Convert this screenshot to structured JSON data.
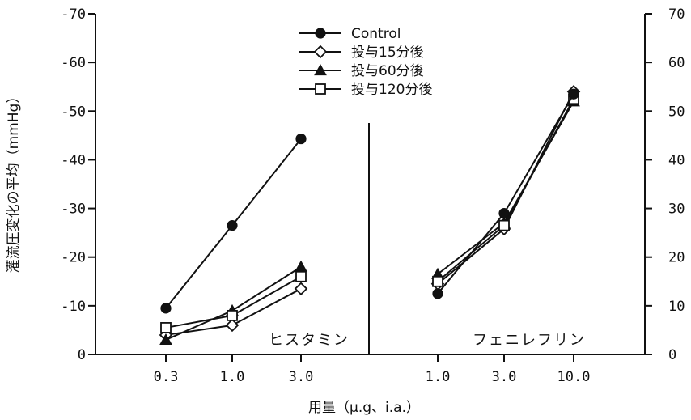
{
  "chart_data": {
    "type": "line",
    "xlabel": "用量（μ.g、i.a.）",
    "ylabel": "灌流圧変化の平均（mmHg）",
    "left_axis": {
      "ylim": [
        0,
        -70
      ],
      "ticks": [
        0,
        -10,
        -20,
        -30,
        -40,
        -50,
        -60,
        -70
      ],
      "tick_labels": [
        "0",
        "-10",
        "-20",
        "-30",
        "-40",
        "-50",
        "-60",
        "-70"
      ]
    },
    "right_axis": {
      "ylim": [
        0,
        70
      ],
      "ticks": [
        0,
        10,
        20,
        30,
        40,
        50,
        60,
        70
      ],
      "tick_labels": [
        "0",
        "10",
        "20",
        "30",
        "40",
        "50",
        "60",
        "70"
      ]
    },
    "legend": [
      {
        "name": "Control",
        "marker": "filled-circle"
      },
      {
        "name": "投与15分後",
        "marker": "open-diamond"
      },
      {
        "name": "投与60分後",
        "marker": "filled-triangle"
      },
      {
        "name": "投与120分後",
        "marker": "open-square"
      }
    ],
    "panels": [
      {
        "label": "ヒスタミン",
        "axis": "left",
        "categories": [
          "0.3",
          "1.0",
          "3.0"
        ],
        "series": [
          {
            "name": "Control",
            "values": [
              -9.5,
              -26.5,
              -44.3
            ]
          },
          {
            "name": "投与15分後",
            "values": [
              -4.0,
              -6.0,
              -13.5
            ]
          },
          {
            "name": "投与60分後",
            "values": [
              -3.0,
              -9.0,
              -18.0
            ]
          },
          {
            "name": "投与120分後",
            "values": [
              -5.5,
              -8.0,
              -16.0
            ]
          }
        ]
      },
      {
        "label": "フェニレフリン",
        "axis": "right",
        "categories": [
          "1.0",
          "3.0",
          "10.0"
        ],
        "series": [
          {
            "name": "Control",
            "values": [
              12.5,
              29.0,
              53.5
            ]
          },
          {
            "name": "投与15分後",
            "values": [
              14.5,
              25.8,
              54.0
            ]
          },
          {
            "name": "投与60分後",
            "values": [
              16.5,
              27.0,
              52.0
            ]
          },
          {
            "name": "投与120分後",
            "values": [
              15.0,
              26.5,
              52.5
            ]
          }
        ]
      }
    ]
  },
  "colors": {
    "ink": "#111111",
    "background": "#ffffff"
  }
}
